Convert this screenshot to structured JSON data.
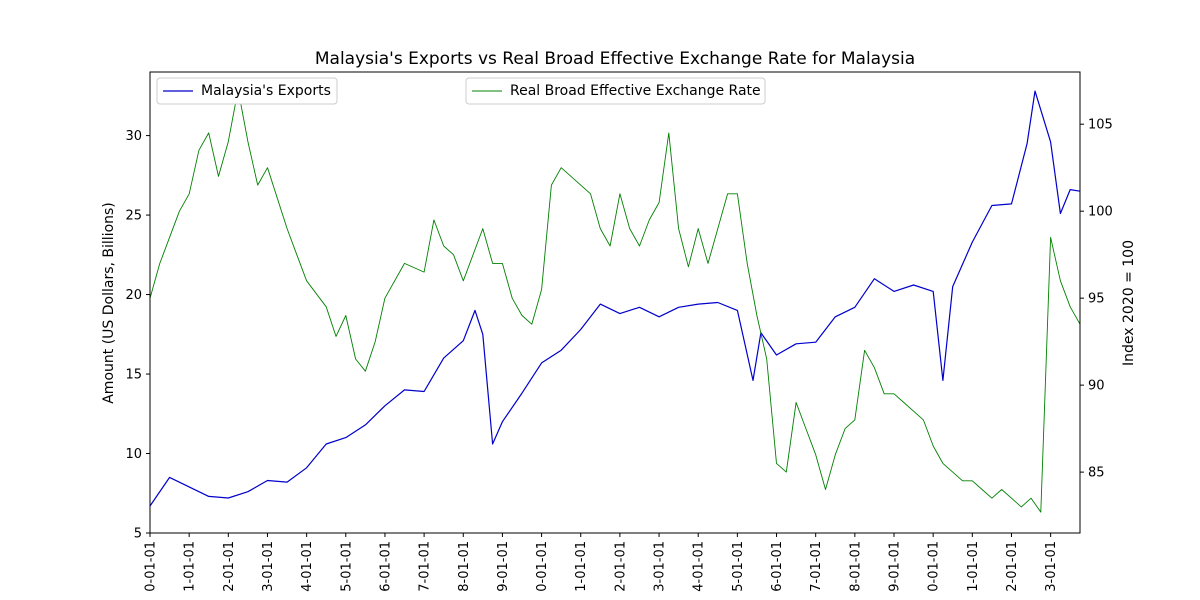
{
  "chart_data": {
    "type": "line",
    "title": "Malaysia's Exports vs Real Broad Effective Exchange Rate for Malaysia",
    "ylabel": "Amount (US Dollars, Billions)",
    "y2label": "Index 2020 = 100",
    "ylim": [
      5,
      34
    ],
    "y2lim": [
      81.5,
      108
    ],
    "yticks": [
      5,
      10,
      15,
      20,
      25,
      30
    ],
    "y2ticks": [
      85,
      90,
      95,
      100,
      105
    ],
    "grid": false,
    "x_tick_labels": [
      "0-01-01",
      "1-01-01",
      "2-01-01",
      "3-01-01",
      "4-01-01",
      "5-01-01",
      "6-01-01",
      "7-01-01",
      "8-01-01",
      "9-01-01",
      "0-01-01",
      "1-01-01",
      "2-01-01",
      "3-01-01",
      "4-01-01",
      "5-01-01",
      "6-01-01",
      "7-01-01",
      "8-01-01",
      "9-01-01",
      "0-01-01",
      "1-01-01",
      "2-01-01",
      "3-01-01"
    ],
    "x_range_years": [
      2000,
      2023.75
    ],
    "series": [
      {
        "name": "Malaysia's Exports",
        "axis": "left",
        "color": "#0000cc",
        "x": [
          2000.0,
          2000.5,
          2001.0,
          2001.5,
          2002.0,
          2002.5,
          2003.0,
          2003.5,
          2004.0,
          2004.5,
          2005.0,
          2005.5,
          2006.0,
          2006.5,
          2007.0,
          2007.5,
          2008.0,
          2008.3,
          2008.5,
          2008.75,
          2009.0,
          2009.5,
          2010.0,
          2010.5,
          2011.0,
          2011.5,
          2012.0,
          2012.5,
          2013.0,
          2013.5,
          2014.0,
          2014.5,
          2015.0,
          2015.4,
          2015.6,
          2016.0,
          2016.5,
          2017.0,
          2017.5,
          2018.0,
          2018.5,
          2019.0,
          2019.5,
          2020.0,
          2020.25,
          2020.5,
          2021.0,
          2021.5,
          2022.0,
          2022.4,
          2022.6,
          2023.0,
          2023.25,
          2023.5,
          2023.75
        ],
        "values": [
          6.7,
          8.5,
          7.9,
          7.3,
          7.2,
          7.6,
          8.3,
          8.2,
          9.1,
          10.6,
          11.0,
          11.8,
          13.0,
          14.0,
          13.9,
          16.0,
          17.1,
          19.0,
          17.5,
          10.6,
          12.0,
          13.8,
          15.7,
          16.5,
          17.8,
          19.4,
          18.8,
          19.2,
          18.6,
          19.2,
          19.4,
          19.5,
          19.0,
          14.6,
          17.6,
          16.2,
          16.9,
          17.0,
          18.6,
          19.2,
          21.0,
          20.2,
          20.6,
          20.2,
          14.6,
          20.5,
          23.3,
          25.6,
          25.7,
          29.5,
          32.8,
          29.6,
          25.1,
          26.6,
          26.5
        ]
      },
      {
        "name": "Real Broad Effective Exchange Rate",
        "axis": "right",
        "color": "#008000",
        "x": [
          2000.0,
          2000.25,
          2000.5,
          2000.75,
          2001.0,
          2001.25,
          2001.5,
          2001.75,
          2002.0,
          2002.25,
          2002.5,
          2002.75,
          2003.0,
          2003.5,
          2003.75,
          2004.0,
          2004.5,
          2004.75,
          2005.0,
          2005.25,
          2005.5,
          2005.75,
          2006.0,
          2006.5,
          2007.0,
          2007.25,
          2007.5,
          2007.75,
          2008.0,
          2008.5,
          2008.75,
          2009.0,
          2009.25,
          2009.5,
          2009.75,
          2010.0,
          2010.25,
          2010.5,
          2011.0,
          2011.25,
          2011.5,
          2011.75,
          2012.0,
          2012.25,
          2012.5,
          2012.75,
          2013.0,
          2013.25,
          2013.5,
          2013.75,
          2014.0,
          2014.25,
          2014.5,
          2014.75,
          2015.0,
          2015.25,
          2015.5,
          2015.75,
          2016.0,
          2016.25,
          2016.5,
          2016.75,
          2017.0,
          2017.25,
          2017.5,
          2017.75,
          2018.0,
          2018.25,
          2018.5,
          2018.75,
          2019.0,
          2019.25,
          2019.5,
          2019.75,
          2020.0,
          2020.25,
          2020.5,
          2020.75,
          2021.0,
          2021.25,
          2021.5,
          2021.75,
          2022.0,
          2022.25,
          2022.5,
          2022.75,
          2023.0,
          2023.1,
          2023.25,
          2023.5,
          2023.75
        ],
        "values": [
          95.0,
          97.0,
          98.5,
          100.0,
          101.0,
          103.5,
          104.5,
          102.0,
          104.0,
          107.0,
          104.0,
          101.5,
          102.5,
          99.0,
          97.5,
          96.0,
          94.5,
          92.8,
          94.0,
          91.5,
          90.8,
          92.5,
          95.0,
          97.0,
          96.5,
          99.5,
          98.0,
          97.5,
          96.0,
          99.0,
          97.0,
          97.0,
          95.0,
          94.0,
          93.5,
          95.5,
          101.5,
          102.5,
          101.5,
          101.0,
          99.0,
          98.0,
          101.0,
          99.0,
          98.0,
          99.5,
          100.5,
          104.5,
          99.0,
          96.8,
          99.0,
          97.0,
          99.0,
          101.0,
          101.0,
          97.0,
          94.0,
          91.5,
          85.5,
          85.0,
          89.0,
          87.5,
          86.0,
          84.0,
          86.0,
          87.5,
          88.0,
          92.0,
          91.0,
          89.5,
          89.5,
          89.0,
          88.5,
          88.0,
          86.5,
          85.5,
          85.0,
          84.5,
          84.5,
          84.0,
          83.5,
          84.0,
          83.5,
          83.0,
          83.5,
          82.7,
          98.5,
          97.5,
          96.0,
          94.5,
          93.5
        ]
      }
    ]
  },
  "legend": {
    "left_label": "Malaysia's Exports",
    "right_label": "Real Broad Effective Exchange Rate"
  }
}
